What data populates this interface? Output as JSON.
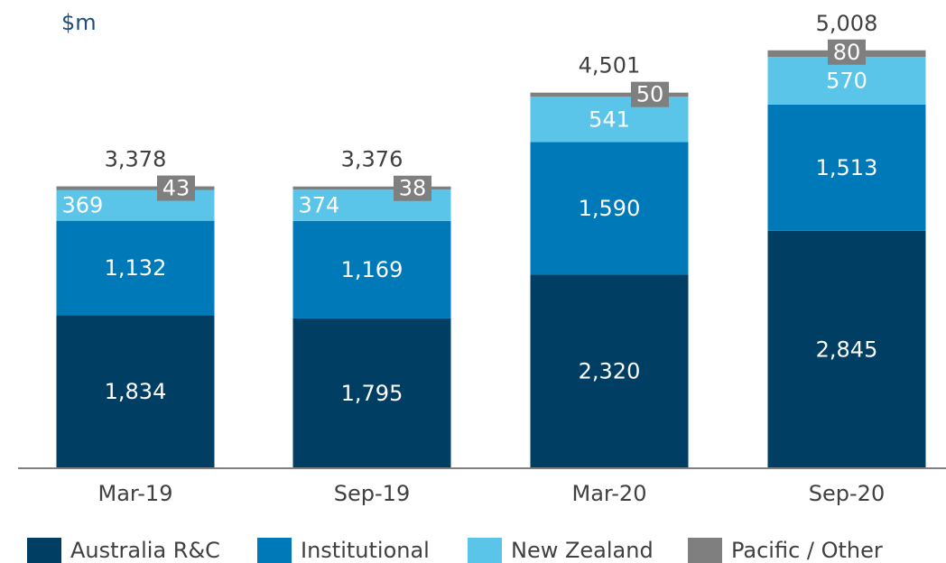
{
  "chart_data": {
    "type": "stacked_bar",
    "unit_label": "$m",
    "categories": [
      "Mar-19",
      "Sep-19",
      "Mar-20",
      "Sep-20"
    ],
    "series": [
      {
        "name": "Australia R&C",
        "color": "#003f63",
        "values": [
          1834,
          1795,
          2320,
          2845
        ],
        "value_labels": [
          "1,834",
          "1,795",
          "2,320",
          "2,845"
        ]
      },
      {
        "name": "Institutional",
        "color": "#0079b9",
        "values": [
          1132,
          1169,
          1590,
          1513
        ],
        "value_labels": [
          "1,132",
          "1,169",
          "1,590",
          "1,513"
        ]
      },
      {
        "name": "New Zealand",
        "color": "#5bc5e9",
        "values": [
          369,
          374,
          541,
          570
        ],
        "value_labels": [
          "369",
          "374",
          "541",
          "570"
        ]
      },
      {
        "name": "Pacific / Other",
        "color": "#7f7f7f",
        "values": [
          43,
          38,
          50,
          80
        ],
        "value_labels": [
          "43",
          "38",
          "50",
          "80"
        ]
      }
    ],
    "totals": [
      3378,
      3376,
      4501,
      5008
    ],
    "total_labels": [
      "3,378",
      "3,376",
      "4,501",
      "5,008"
    ],
    "ylim": [
      0,
      5400
    ]
  }
}
